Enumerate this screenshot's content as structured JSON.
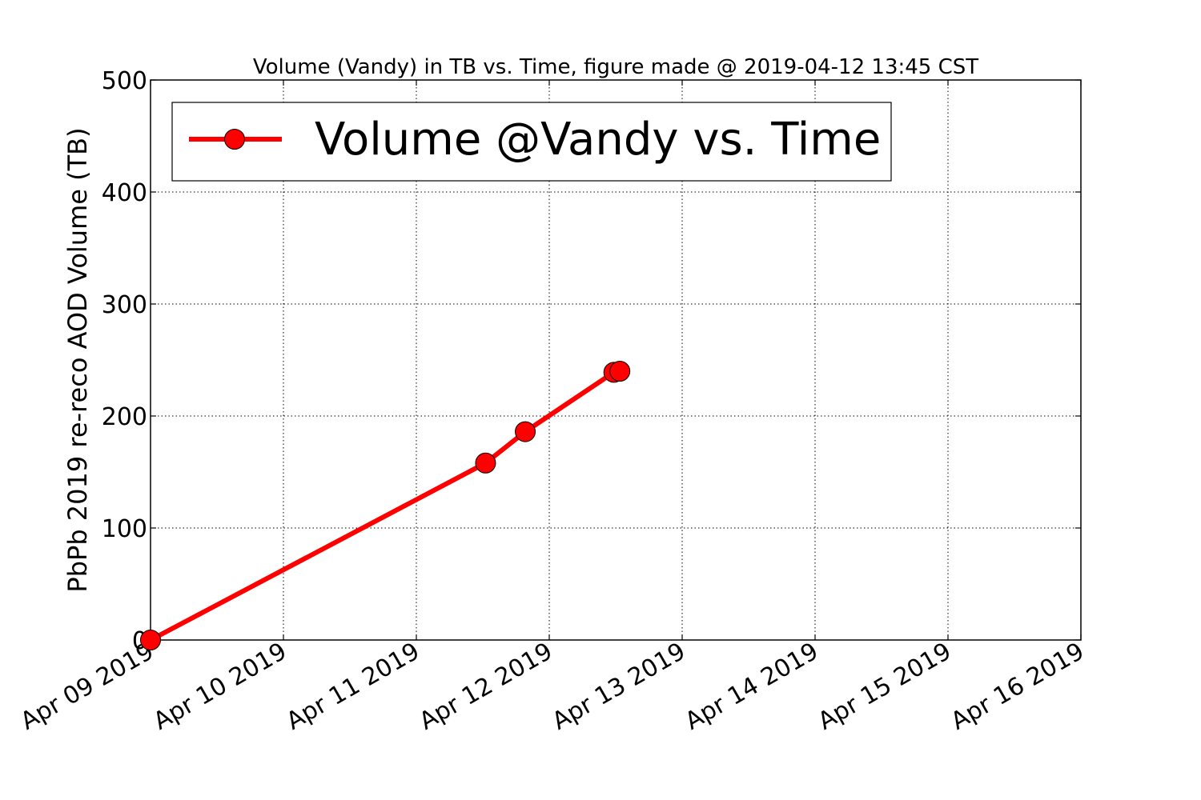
{
  "chart_data": {
    "type": "line",
    "title": "Volume (Vandy) in TB vs. Time, figure made @ 2019-04-12 13:45 CST",
    "ylabel": "PbPb 2019 re-reco AOD Volume (TB)",
    "xlabel": "",
    "x_tick_labels": [
      "Apr 09 2019",
      "Apr 10 2019",
      "Apr 11 2019",
      "Apr 12 2019",
      "Apr 13 2019",
      "Apr 14 2019",
      "Apr 15 2019",
      "Apr 16 2019"
    ],
    "y_tick_labels": [
      "0",
      "100",
      "200",
      "300",
      "400",
      "500"
    ],
    "xlim": [
      "2019-04-09T00:00",
      "2019-04-16T00:00"
    ],
    "ylim": [
      0,
      500
    ],
    "grid": true,
    "legend_position": "upper-left",
    "series": [
      {
        "name": "Volume @Vandy vs. Time",
        "color": "#ff0000",
        "marker": "circle",
        "points": [
          {
            "x": "2019-04-09T00:00",
            "y": 0
          },
          {
            "x": "2019-04-11T12:30",
            "y": 158
          },
          {
            "x": "2019-04-11T19:40",
            "y": 186
          },
          {
            "x": "2019-04-12T11:40",
            "y": 239
          },
          {
            "x": "2019-04-12T12:45",
            "y": 240
          }
        ]
      }
    ]
  }
}
